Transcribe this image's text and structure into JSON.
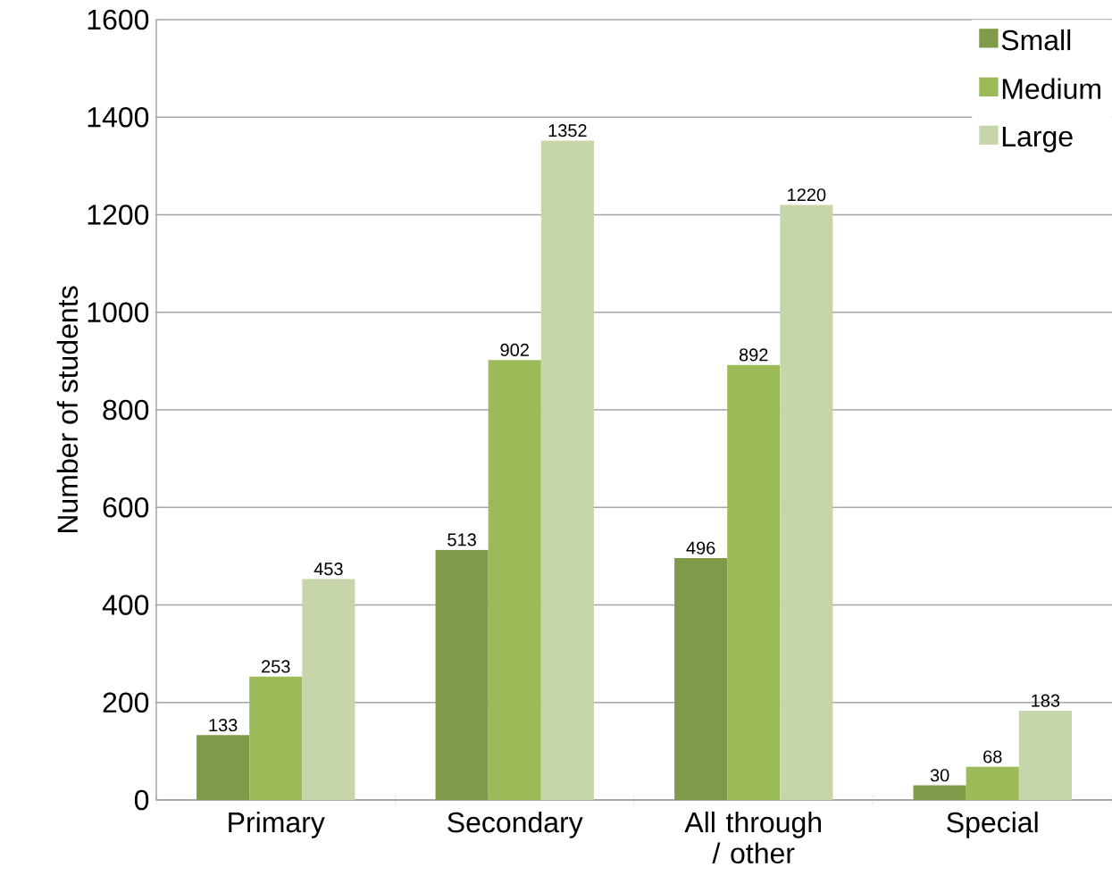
{
  "chart_data": {
    "type": "bar",
    "ylabel": "Number of students",
    "categories": [
      "Primary",
      "Secondary",
      "All through / other",
      "Special"
    ],
    "series": [
      {
        "name": "Small",
        "color": "#7f9a48",
        "values": [
          133,
          513,
          496,
          30
        ]
      },
      {
        "name": "Medium",
        "color": "#9bbb59",
        "values": [
          253,
          902,
          892,
          68
        ]
      },
      {
        "name": "Large",
        "color": "#c6d6aa",
        "values": [
          453,
          1352,
          1220,
          183
        ]
      }
    ],
    "ylim": [
      0,
      1600
    ],
    "yticks": [
      0,
      200,
      400,
      600,
      800,
      1000,
      1200,
      1400,
      1600
    ],
    "grid": "y",
    "legend": "top right",
    "data_labels": true
  }
}
